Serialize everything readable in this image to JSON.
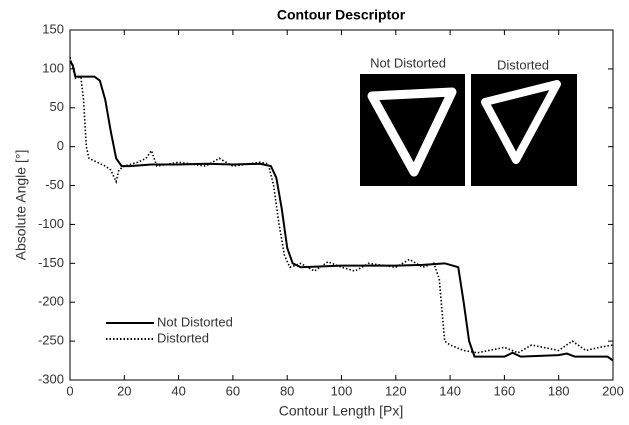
{
  "chart_data": {
    "type": "line",
    "title": "Contour Descriptor",
    "xlabel": "Contour Length [Px]",
    "ylabel": "Absolute Angle [°]",
    "xlim": [
      0,
      200
    ],
    "ylim": [
      -300,
      150
    ],
    "xticks": [
      0,
      20,
      40,
      60,
      80,
      100,
      120,
      140,
      160,
      180,
      200
    ],
    "yticks": [
      -300,
      -250,
      -200,
      -150,
      -100,
      -50,
      0,
      50,
      100,
      150
    ],
    "legend": "lower left",
    "series": [
      {
        "name": "Not Distorted",
        "color": "#000000",
        "style": "solid",
        "x": [
          0,
          1,
          2,
          5,
          9,
          11,
          13,
          15,
          17,
          19,
          22,
          30,
          40,
          50,
          60,
          70,
          74,
          76,
          78,
          80,
          82,
          85,
          100,
          120,
          130,
          138,
          143,
          145,
          147,
          149,
          160,
          163,
          166,
          180,
          183,
          186,
          198,
          200
        ],
        "values": [
          110,
          105,
          90,
          90,
          90,
          85,
          60,
          20,
          -15,
          -25,
          -25,
          -23,
          -23,
          -22,
          -23,
          -22,
          -25,
          -40,
          -80,
          -130,
          -150,
          -155,
          -153,
          -153,
          -152,
          -150,
          -155,
          -200,
          -250,
          -270,
          -270,
          -265,
          -270,
          -268,
          -266,
          -270,
          -270,
          -275
        ]
      },
      {
        "name": "Distorted",
        "color": "#000000",
        "style": "dotted",
        "x": [
          0,
          2,
          4,
          5,
          6,
          7,
          10,
          13,
          15,
          17,
          18,
          20,
          25,
          28,
          30,
          32,
          40,
          50,
          55,
          60,
          70,
          73,
          75,
          77,
          79,
          81,
          85,
          90,
          95,
          100,
          105,
          110,
          120,
          125,
          130,
          134,
          136,
          137,
          138,
          140,
          145,
          150,
          160,
          165,
          170,
          180,
          185,
          190,
          195,
          200
        ],
        "values": [
          115,
          88,
          90,
          60,
          0,
          -15,
          -20,
          -25,
          -30,
          -45,
          -30,
          -25,
          -20,
          -15,
          -5,
          -25,
          -20,
          -25,
          -15,
          -25,
          -20,
          -22,
          -50,
          -100,
          -140,
          -155,
          -150,
          -160,
          -148,
          -155,
          -160,
          -150,
          -155,
          -145,
          -155,
          -150,
          -170,
          -210,
          -250,
          -255,
          -262,
          -265,
          -258,
          -265,
          -255,
          -262,
          -250,
          -262,
          -258,
          -255
        ]
      }
    ]
  }
}
